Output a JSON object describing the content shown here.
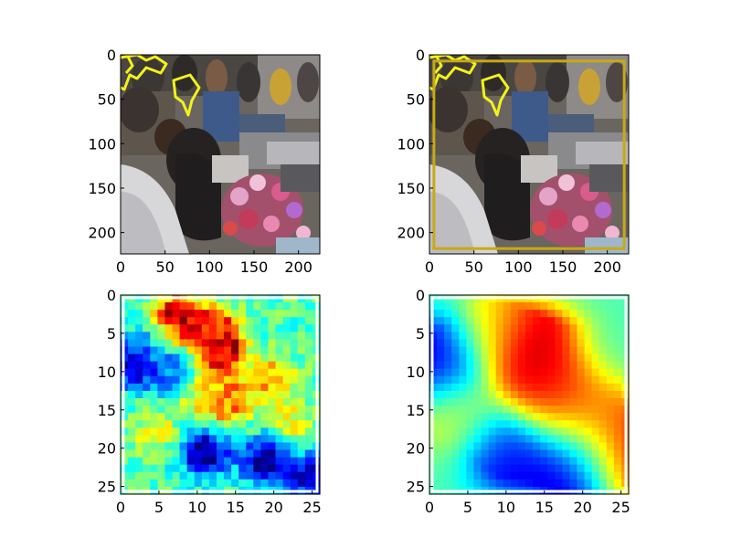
{
  "chart_data": [
    {
      "type": "image",
      "panel": "top-left",
      "content": "photo: crowded street market, people and a cart of pink flowers; yellow outlined regions at top-left",
      "overlay_color": "#f2f21a",
      "xlim": [
        0,
        224
      ],
      "ylim": [
        224,
        0
      ],
      "xticks": [
        0,
        50,
        100,
        150,
        200
      ],
      "yticks": [
        0,
        50,
        100,
        150,
        200
      ],
      "xtick_labels": [
        "0",
        "50",
        "100",
        "150",
        "200"
      ],
      "ytick_labels": [
        "0",
        "50",
        "100",
        "150",
        "200"
      ]
    },
    {
      "type": "image",
      "panel": "top-right",
      "content": "same photo with yellow outlined regions and a dark-yellow bounding box",
      "overlay_color": "#f2f21a",
      "box_color": "#c8aa14",
      "bounding_box": {
        "x0": 5,
        "y0": 7,
        "x1": 219,
        "y1": 218
      },
      "xlim": [
        0,
        224
      ],
      "ylim": [
        224,
        0
      ],
      "xticks": [
        0,
        50,
        100,
        150,
        200
      ],
      "yticks": [
        0,
        50,
        100,
        150,
        200
      ],
      "xtick_labels": [
        "0",
        "50",
        "100",
        "150",
        "200"
      ],
      "ytick_labels": [
        "0",
        "50",
        "100",
        "150",
        "200"
      ]
    },
    {
      "type": "heatmap",
      "panel": "bottom-left",
      "colormap": "jet",
      "content": "noisy, blocky 27x27 activation map",
      "grid_size": 27,
      "xlim": [
        0,
        26
      ],
      "ylim": [
        26,
        0
      ],
      "xticks": [
        0,
        5,
        10,
        15,
        20,
        25
      ],
      "yticks": [
        0,
        5,
        10,
        15,
        20,
        25
      ],
      "xtick_labels": [
        "0",
        "5",
        "10",
        "15",
        "20",
        "25"
      ],
      "ytick_labels": [
        "0",
        "5",
        "10",
        "15",
        "20",
        "25"
      ],
      "hotspots": [
        {
          "x": 7,
          "y": 3,
          "value": 1.0
        },
        {
          "x": 13,
          "y": 7,
          "value": 0.95
        },
        {
          "x": 12,
          "y": 4,
          "value": 0.8
        },
        {
          "x": 4,
          "y": 6,
          "value": 0.3
        },
        {
          "x": 14,
          "y": 14,
          "value": 0.75
        },
        {
          "x": 20,
          "y": 11,
          "value": 0.7
        },
        {
          "x": 10,
          "y": 13,
          "value": 0.65
        },
        {
          "x": 11,
          "y": 21,
          "value": 0.02
        },
        {
          "x": 19,
          "y": 22,
          "value": 0.05
        },
        {
          "x": 1,
          "y": 9,
          "value": 0.08
        },
        {
          "x": 7,
          "y": 10,
          "value": 0.2
        },
        {
          "x": 25,
          "y": 24,
          "value": 0.1
        },
        {
          "x": 23,
          "y": 17,
          "value": 0.6
        },
        {
          "x": 4,
          "y": 18,
          "value": 0.6
        }
      ]
    },
    {
      "type": "heatmap",
      "panel": "bottom-right",
      "colormap": "jet",
      "content": "smooth 27x27 activation map",
      "grid_size": 27,
      "xlim": [
        0,
        26
      ],
      "ylim": [
        26,
        0
      ],
      "xticks": [
        0,
        5,
        10,
        15,
        20,
        25
      ],
      "yticks": [
        0,
        5,
        10,
        15,
        20,
        25
      ],
      "xtick_labels": [
        "0",
        "5",
        "10",
        "15",
        "20",
        "25"
      ],
      "ytick_labels": [
        "0",
        "5",
        "10",
        "15",
        "20",
        "25"
      ],
      "hotspots": [
        {
          "x": 14,
          "y": 7,
          "value": 1.0
        },
        {
          "x": 16,
          "y": 12,
          "value": 0.85
        },
        {
          "x": 21,
          "y": 16,
          "value": 0.75
        },
        {
          "x": 26,
          "y": 21,
          "value": 0.9
        },
        {
          "x": 8,
          "y": 4,
          "value": 0.65
        },
        {
          "x": 1,
          "y": 8,
          "value": 0.05
        },
        {
          "x": 10,
          "y": 21,
          "value": 0.12
        },
        {
          "x": 19,
          "y": 23,
          "value": 0.05
        },
        {
          "x": 3,
          "y": 16,
          "value": 0.6
        },
        {
          "x": 24,
          "y": 6,
          "value": 0.45
        }
      ]
    }
  ]
}
